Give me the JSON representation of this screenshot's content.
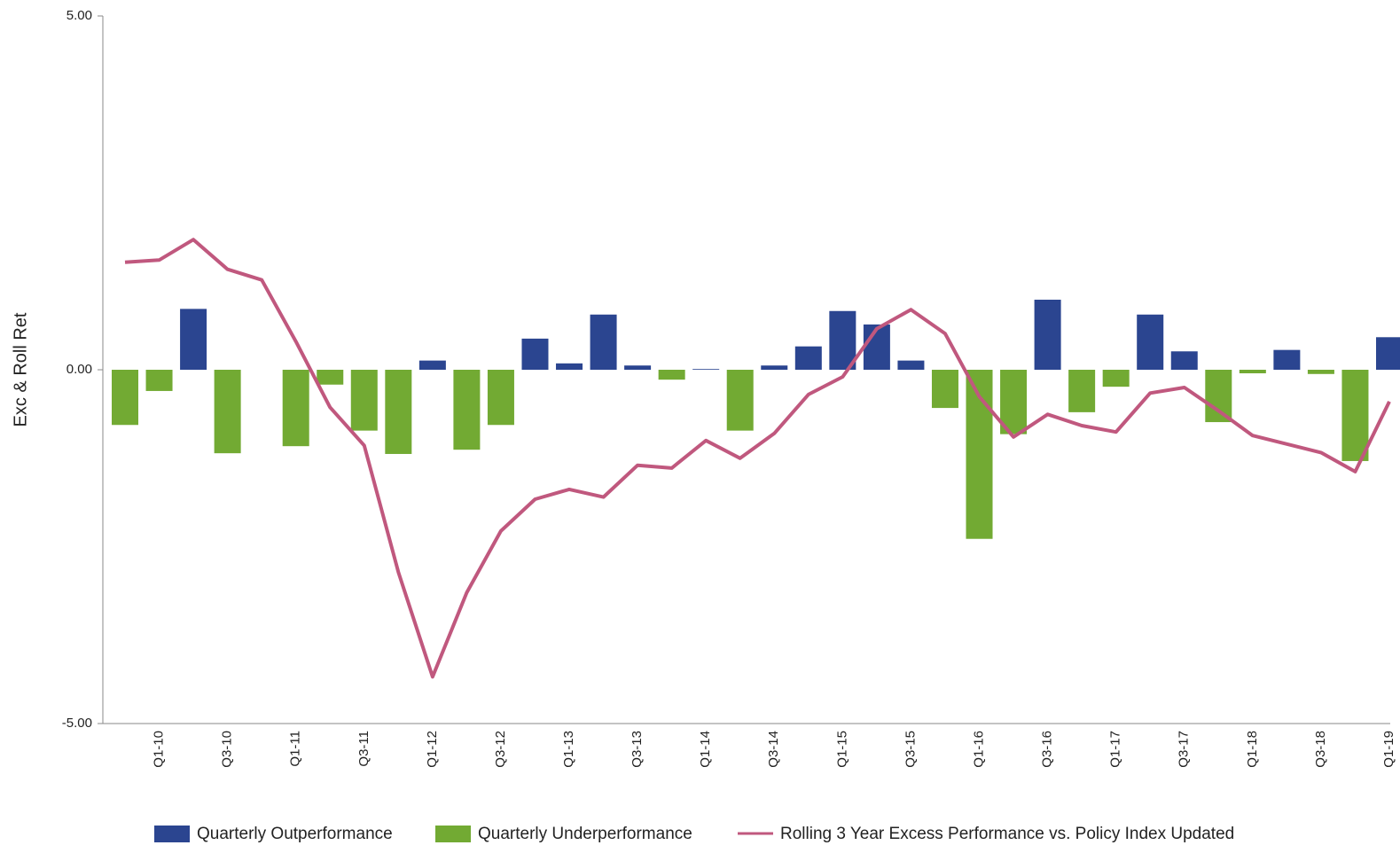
{
  "chart_data": {
    "type": "bar",
    "ylabel": "Exc & Roll Ret",
    "categories": [
      null,
      "Q1-10",
      null,
      "Q3-10",
      null,
      "Q1-11",
      null,
      "Q3-11",
      null,
      "Q1-12",
      null,
      "Q3-12",
      null,
      "Q1-13",
      null,
      "Q3-13",
      null,
      "Q1-14",
      null,
      "Q3-14",
      null,
      "Q1-15",
      null,
      "Q3-15",
      null,
      "Q1-16",
      null,
      "Q3-16",
      null,
      "Q1-17",
      null,
      "Q3-17",
      null,
      "Q1-18",
      null,
      "Q3-18",
      null,
      "Q1-19"
    ],
    "series": [
      {
        "name": "Quarterly Outperformance",
        "color": "#2b4590",
        "type": "bar",
        "values": [
          null,
          null,
          0.86,
          null,
          null,
          null,
          null,
          null,
          null,
          0.13,
          null,
          null,
          0.44,
          0.09,
          0.78,
          0.06,
          null,
          0.01,
          null,
          0.06,
          0.33,
          0.83,
          0.64,
          0.13,
          null,
          null,
          null,
          0.99,
          null,
          null,
          0.78,
          0.26,
          null,
          null,
          0.28,
          null,
          null,
          0.46
        ]
      },
      {
        "name": "Quarterly Underperformance",
        "color": "#72aa33",
        "type": "bar",
        "values": [
          -0.78,
          -0.3,
          null,
          -1.18,
          null,
          -1.08,
          -0.21,
          -0.86,
          -1.19,
          null,
          -1.13,
          -0.78,
          null,
          null,
          null,
          null,
          -0.14,
          null,
          -0.86,
          null,
          null,
          null,
          null,
          null,
          -0.54,
          -2.39,
          -0.91,
          null,
          -0.6,
          -0.24,
          null,
          null,
          -0.74,
          -0.05,
          null,
          -0.06,
          -1.29,
          null
        ]
      },
      {
        "name": "Rolling 3 Year Excess Performance vs. Policy Index Updated",
        "color": "#c0587e",
        "type": "line",
        "values": [
          1.52,
          1.55,
          1.84,
          1.42,
          1.27,
          0.4,
          -0.53,
          -1.07,
          -2.86,
          -4.34,
          -3.15,
          -2.28,
          -1.83,
          -1.69,
          -1.8,
          -1.35,
          -1.39,
          -1.0,
          -1.25,
          -0.9,
          -0.35,
          -0.1,
          0.58,
          0.85,
          0.51,
          -0.38,
          -0.95,
          -0.63,
          -0.79,
          -0.88,
          -0.33,
          -0.25,
          -0.58,
          -0.93,
          -1.05,
          -1.17,
          -1.44,
          -0.45
        ]
      }
    ],
    "ylim": [
      -5,
      5
    ],
    "yticks": [
      {
        "value": 5,
        "label": "5.00"
      },
      {
        "value": 0,
        "label": "0.00"
      },
      {
        "value": -5,
        "label": "-5.00"
      }
    ],
    "grid": false,
    "legend": "bottom"
  }
}
